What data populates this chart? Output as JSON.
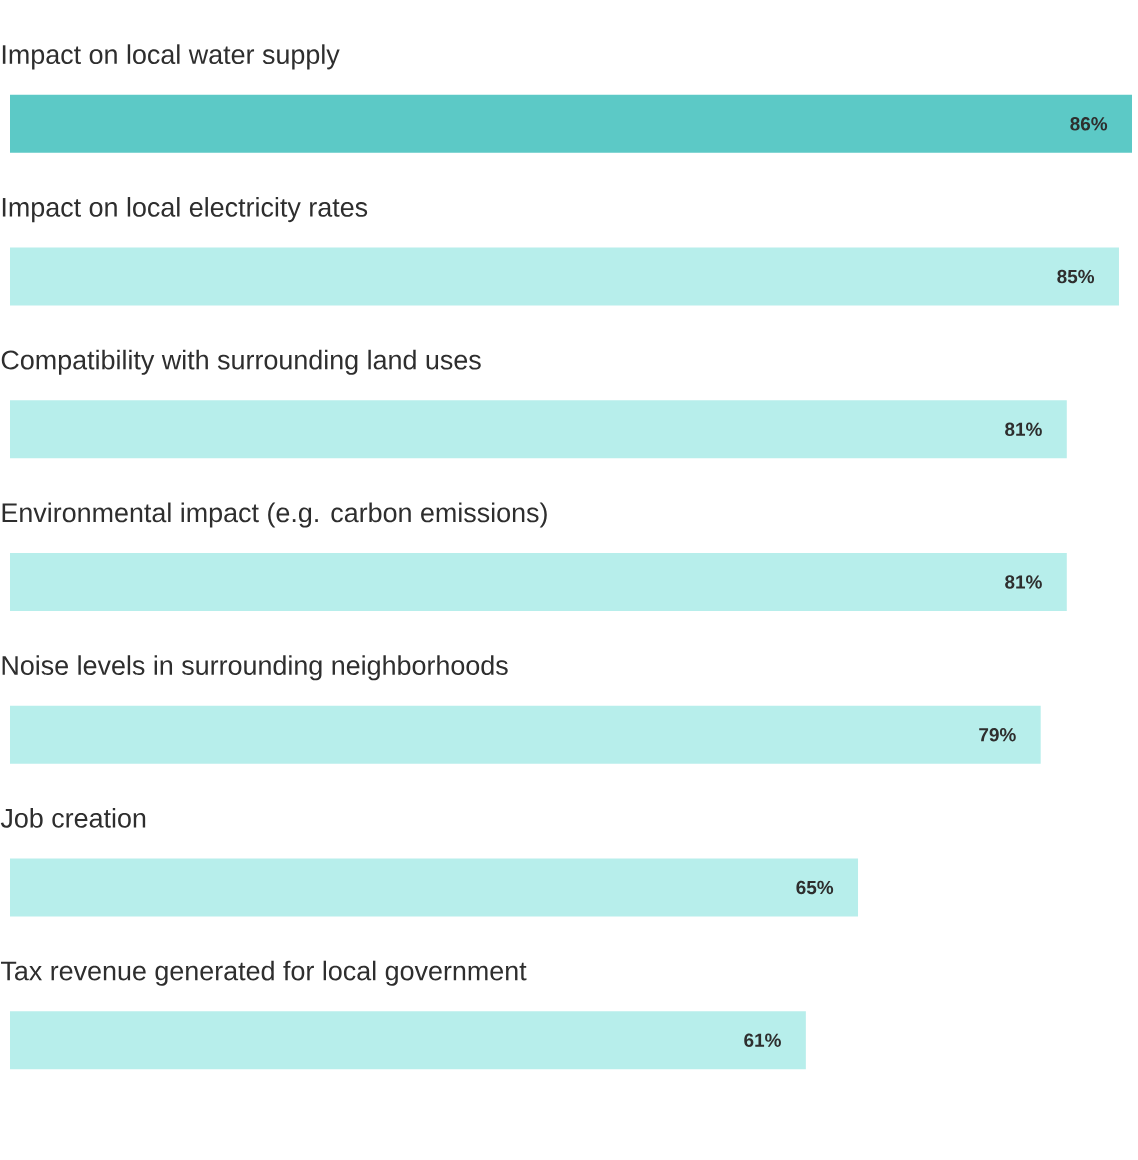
{
  "chart_data": {
    "type": "bar",
    "orientation": "horizontal",
    "categories": [
      "Impact on local water supply",
      "Impact on local electricity rates",
      "Compatibility with surrounding land uses",
      "Environmental impact (e.g. carbon emissions)",
      "Noise levels in surrounding neighborhoods",
      "Job creation",
      "Tax revenue generated for local government"
    ],
    "values": [
      86,
      85,
      81,
      81,
      79,
      65,
      61
    ],
    "value_labels": [
      "86%",
      "85%",
      "81%",
      "81%",
      "79%",
      "65%",
      "61%"
    ],
    "colors": [
      "#5cc9c6",
      "#b7eeeb",
      "#b7eeeb",
      "#b7eeeb",
      "#b7eeeb",
      "#b7eeeb",
      "#b7eeeb"
    ]
  }
}
